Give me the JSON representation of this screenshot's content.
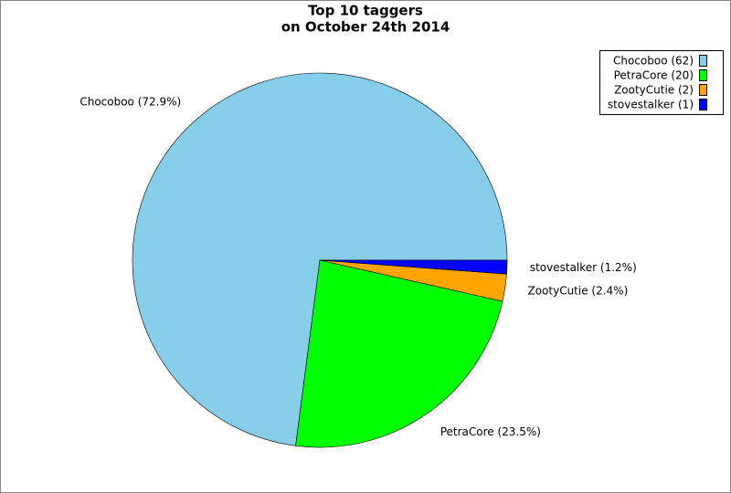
{
  "chart_data": {
    "type": "pie",
    "title": "Top 10 taggers",
    "subtitle": "on October 24th 2014",
    "categories": [
      "Chocoboo",
      "PetraCore",
      "ZootyCutie",
      "stovestalker"
    ],
    "values": [
      62,
      20,
      2,
      1
    ],
    "value_labels": [
      "Chocoboo (62)",
      "PetraCore (20)",
      "ZootyCutie (2)",
      "stovestalker (1)"
    ],
    "percents": [
      72.9,
      23.5,
      2.4,
      1.2
    ],
    "percent_labels": [
      "Chocoboo (72.9%)",
      "PetraCore (23.5%)",
      "ZootyCutie (2.4%)",
      "stovestalker (1.2%)"
    ],
    "colors": [
      "#87ceeb",
      "#00ff00",
      "#ffa500",
      "#0000ff"
    ],
    "legend": "top-right"
  }
}
